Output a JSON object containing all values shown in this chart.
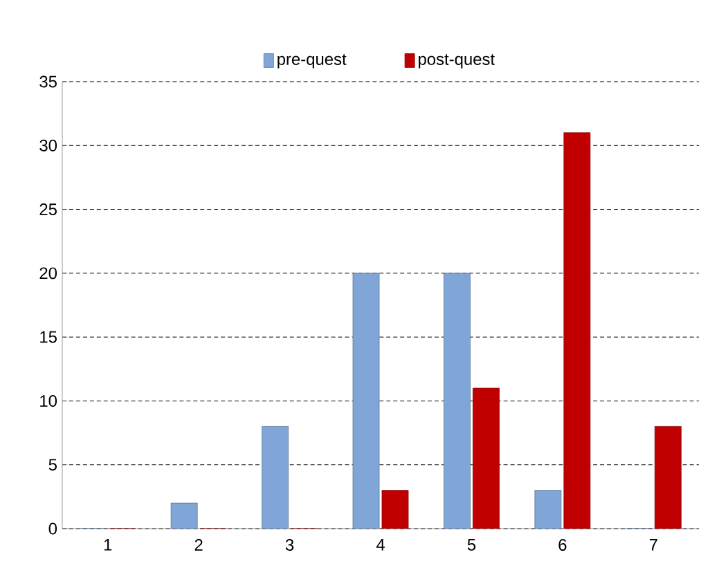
{
  "chart_data": {
    "type": "bar",
    "categories": [
      "1",
      "2",
      "3",
      "4",
      "5",
      "6",
      "7"
    ],
    "series": [
      {
        "name": "pre-quest",
        "color": "#7fa6d6",
        "values": [
          0,
          2,
          8,
          20,
          20,
          3,
          0
        ]
      },
      {
        "name": "post-quest",
        "color": "#c00000",
        "values": [
          0,
          0,
          0,
          3,
          11,
          31,
          8
        ]
      }
    ],
    "ylim": [
      0,
      35
    ],
    "yticks": [
      0,
      5,
      10,
      15,
      20,
      25,
      30,
      35
    ],
    "grid": "y",
    "legend": "top"
  }
}
